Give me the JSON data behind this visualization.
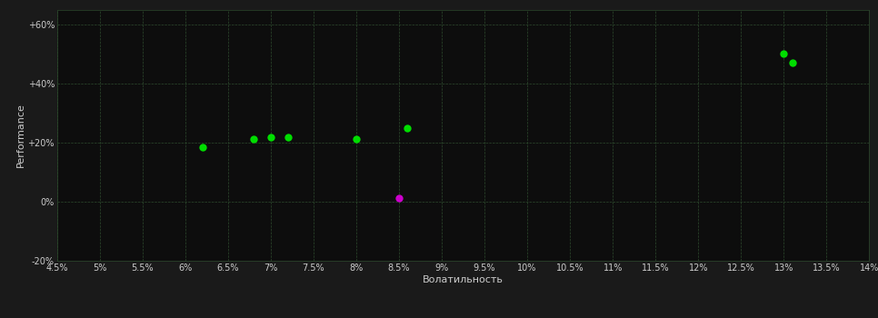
{
  "background_color": "#1a1a1a",
  "plot_bg_color": "#0d0d0d",
  "grid_color": "#2d4a2d",
  "grid_style": "--",
  "text_color": "#cccccc",
  "xlabel": "Волатильность",
  "ylabel": "Performance",
  "xlim": [
    0.045,
    0.14
  ],
  "ylim": [
    -0.2,
    0.65
  ],
  "xticks": [
    0.045,
    0.05,
    0.055,
    0.06,
    0.065,
    0.07,
    0.075,
    0.08,
    0.085,
    0.09,
    0.095,
    0.1,
    0.105,
    0.11,
    0.115,
    0.12,
    0.125,
    0.13,
    0.135,
    0.14
  ],
  "yticks": [
    -0.2,
    0.0,
    0.2,
    0.4,
    0.6
  ],
  "ytick_labels": [
    "-20%",
    "0%",
    "+20%",
    "+40%",
    "+60%"
  ],
  "xtick_labels": [
    "4.5%",
    "5%",
    "5.5%",
    "6%",
    "6.5%",
    "7%",
    "7.5%",
    "8%",
    "8.5%",
    "9%",
    "9.5%",
    "10%",
    "10.5%",
    "11%",
    "11.5%",
    "12%",
    "12.5%",
    "13%",
    "13.5%",
    "14%"
  ],
  "green_points": [
    [
      0.062,
      0.185
    ],
    [
      0.068,
      0.213
    ],
    [
      0.07,
      0.218
    ],
    [
      0.072,
      0.218
    ],
    [
      0.08,
      0.213
    ],
    [
      0.086,
      0.25
    ],
    [
      0.13,
      0.5
    ],
    [
      0.131,
      0.47
    ]
  ],
  "magenta_points": [
    [
      0.085,
      0.013
    ]
  ],
  "green_color": "#00dd00",
  "magenta_color": "#cc00cc",
  "marker_size": 6,
  "tick_fontsize": 7,
  "label_fontsize": 8
}
